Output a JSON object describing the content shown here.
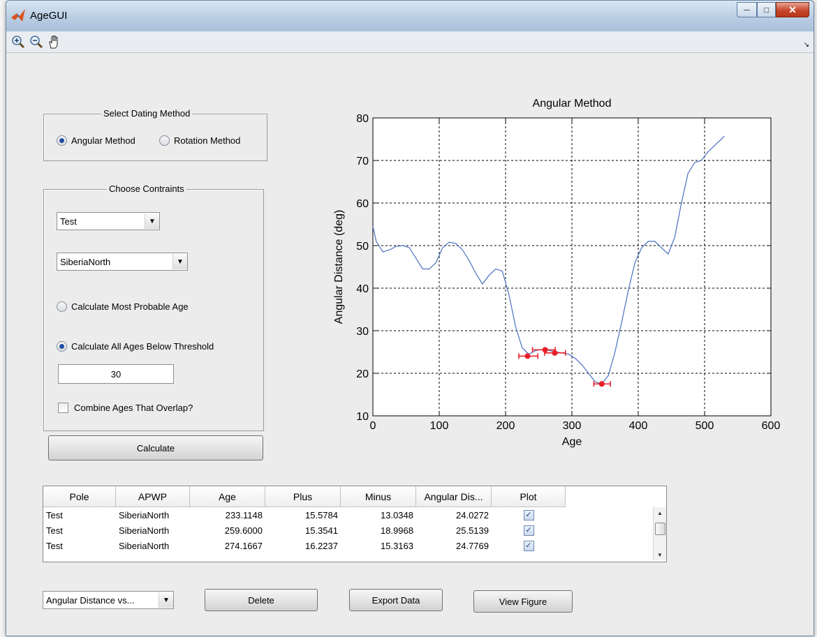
{
  "window": {
    "title": "AgeGUI"
  },
  "toolbar": {
    "icons": [
      "zoom-in-icon",
      "zoom-out-icon",
      "pan-hand-icon"
    ]
  },
  "dating_method": {
    "title": "Select Dating Method",
    "options": [
      "Angular Method",
      "Rotation Method"
    ],
    "selected": "Angular Method"
  },
  "constraints": {
    "title": "Choose Contraints",
    "pole_select": "Test",
    "apwp_select": "SiberiaNorth",
    "radio_most_probable": "Calculate Most Probable Age",
    "radio_all_below": "Calculate All Ages Below Threshold",
    "selected": "Calculate All Ages Below Threshold",
    "threshold": "30",
    "combine_label": "Combine Ages That Overlap?",
    "combine_checked": false
  },
  "calculate_label": "Calculate",
  "chart_data": {
    "type": "line",
    "title": "Angular Method",
    "xlabel": "Age",
    "ylabel": "Angular Distance (deg)",
    "xlim": [
      0,
      600
    ],
    "ylim": [
      10,
      80
    ],
    "xticks": [
      "0",
      "100",
      "200",
      "300",
      "400",
      "500",
      "600"
    ],
    "yticks": [
      "10",
      "20",
      "30",
      "40",
      "50",
      "60",
      "70",
      "80"
    ],
    "grid": true,
    "line_color": "#4a6fc0",
    "marker_color": "#e8202a",
    "curve": {
      "x": [
        0,
        5,
        15,
        25,
        35,
        45,
        55,
        65,
        75,
        85,
        95,
        105,
        115,
        125,
        135,
        145,
        155,
        165,
        175,
        185,
        195,
        205,
        215,
        225,
        235,
        245,
        255,
        265,
        275,
        285,
        295,
        305,
        315,
        325,
        335,
        345,
        355,
        365,
        375,
        385,
        395,
        405,
        415,
        425,
        435,
        445,
        455,
        465,
        475,
        485,
        495,
        505,
        515,
        530
      ],
      "y": [
        54.5,
        51,
        48.5,
        49,
        49.8,
        50,
        49.5,
        47,
        44.5,
        44.5,
        46,
        49.5,
        50.8,
        50.5,
        49,
        46.5,
        43.5,
        41,
        43,
        44.5,
        44,
        38.5,
        31,
        26,
        24.5,
        25.3,
        25.6,
        25.4,
        25,
        24.8,
        24.5,
        23.5,
        22,
        20,
        18,
        17.5,
        19.5,
        25,
        32,
        39.5,
        46,
        49.5,
        51,
        51,
        49.5,
        48,
        52,
        60,
        67,
        69.5,
        70,
        72,
        73.5,
        75.7
      ]
    },
    "points": [
      {
        "x": 233.1148,
        "y": 24.0272,
        "plus": 15.5784,
        "minus": 13.0348
      },
      {
        "x": 259.6,
        "y": 25.5139,
        "plus": 15.3541,
        "minus": 18.9968
      },
      {
        "x": 274.1667,
        "y": 24.7769,
        "plus": 16.2237,
        "minus": 15.3163
      },
      {
        "x": 345,
        "y": 17.5,
        "plus": 13,
        "minus": 12
      }
    ]
  },
  "table": {
    "columns": [
      "Pole",
      "APWP",
      "Age",
      "Plus",
      "Minus",
      "Angular Dis...",
      "Plot"
    ],
    "rows": [
      {
        "pole": "Test",
        "apwp": "SiberiaNorth",
        "age": "233.1148",
        "plus": "15.5784",
        "minus": "13.0348",
        "angular": "24.0272",
        "plot": true
      },
      {
        "pole": "Test",
        "apwp": "SiberiaNorth",
        "age": "259.6000",
        "plus": "15.3541",
        "minus": "18.9968",
        "angular": "25.5139",
        "plot": true
      },
      {
        "pole": "Test",
        "apwp": "SiberiaNorth",
        "age": "274.1667",
        "plus": "16.2237",
        "minus": "15.3163",
        "angular": "24.7769",
        "plot": true
      }
    ]
  },
  "bottom": {
    "plot_type_select": "Angular Distance vs...",
    "delete_label": "Delete",
    "export_label": "Export Data",
    "view_label": "View Figure"
  }
}
